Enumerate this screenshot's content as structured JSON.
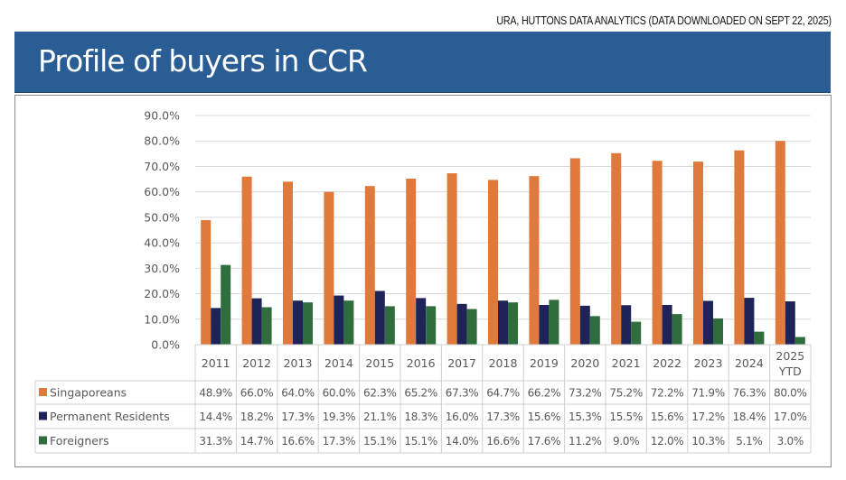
{
  "source_note": "URA, HUTTONS DATA ANALYTICS (DATA DOWNLOADED ON SEPT 22, 2025)",
  "banner_title": "Profile of buyers in CCR",
  "colors": {
    "banner": "#2a5d94",
    "singaporeans": "#e07a3c",
    "permanent_residents": "#1f2458",
    "foreigners": "#2f6e3c"
  },
  "chart_data": {
    "type": "bar",
    "title": "",
    "xlabel": "",
    "ylabel": "",
    "ylim": [
      0,
      90
    ],
    "yticks": [
      "90.0%",
      "80.0%",
      "70.0%",
      "60.0%",
      "50.0%",
      "40.0%",
      "30.0%",
      "20.0%",
      "10.0%",
      "0.0%"
    ],
    "grid": true,
    "legend": "data-table",
    "categories": [
      {
        "line1": "2011",
        "line2": ""
      },
      {
        "line1": "2012",
        "line2": ""
      },
      {
        "line1": "2013",
        "line2": ""
      },
      {
        "line1": "2014",
        "line2": ""
      },
      {
        "line1": "2015",
        "line2": ""
      },
      {
        "line1": "2016",
        "line2": ""
      },
      {
        "line1": "2017",
        "line2": ""
      },
      {
        "line1": "2018",
        "line2": ""
      },
      {
        "line1": "2019",
        "line2": ""
      },
      {
        "line1": "2020",
        "line2": ""
      },
      {
        "line1": "2021",
        "line2": ""
      },
      {
        "line1": "2022",
        "line2": ""
      },
      {
        "line1": "2023",
        "line2": ""
      },
      {
        "line1": "2024",
        "line2": ""
      },
      {
        "line1": "2025",
        "line2": "YTD"
      }
    ],
    "series": [
      {
        "name": "Singaporeans",
        "color": "#e07a3c",
        "values": [
          48.9,
          66.0,
          64.0,
          60.0,
          62.3,
          65.2,
          67.3,
          64.7,
          66.2,
          73.2,
          75.2,
          72.2,
          71.9,
          76.3,
          80.0
        ],
        "labels": [
          "48.9%",
          "66.0%",
          "64.0%",
          "60.0%",
          "62.3%",
          "65.2%",
          "67.3%",
          "64.7%",
          "66.2%",
          "73.2%",
          "75.2%",
          "72.2%",
          "71.9%",
          "76.3%",
          "80.0%"
        ]
      },
      {
        "name": "Permanent Residents",
        "color": "#1f2458",
        "values": [
          14.4,
          18.2,
          17.3,
          19.3,
          21.1,
          18.3,
          16.0,
          17.3,
          15.6,
          15.3,
          15.5,
          15.6,
          17.2,
          18.4,
          17.0
        ],
        "labels": [
          "14.4%",
          "18.2%",
          "17.3%",
          "19.3%",
          "21.1%",
          "18.3%",
          "16.0%",
          "17.3%",
          "15.6%",
          "15.3%",
          "15.5%",
          "15.6%",
          "17.2%",
          "18.4%",
          "17.0%"
        ]
      },
      {
        "name": "Foreigners",
        "color": "#2f6e3c",
        "values": [
          31.3,
          14.7,
          16.6,
          17.3,
          15.1,
          15.1,
          14.0,
          16.6,
          17.6,
          11.2,
          9.0,
          12.0,
          10.3,
          5.1,
          3.0
        ],
        "labels": [
          "31.3%",
          "14.7%",
          "16.6%",
          "17.3%",
          "15.1%",
          "15.1%",
          "14.0%",
          "16.6%",
          "17.6%",
          "11.2%",
          "9.0%",
          "12.0%",
          "10.3%",
          "5.1%",
          "3.0%"
        ]
      }
    ]
  }
}
